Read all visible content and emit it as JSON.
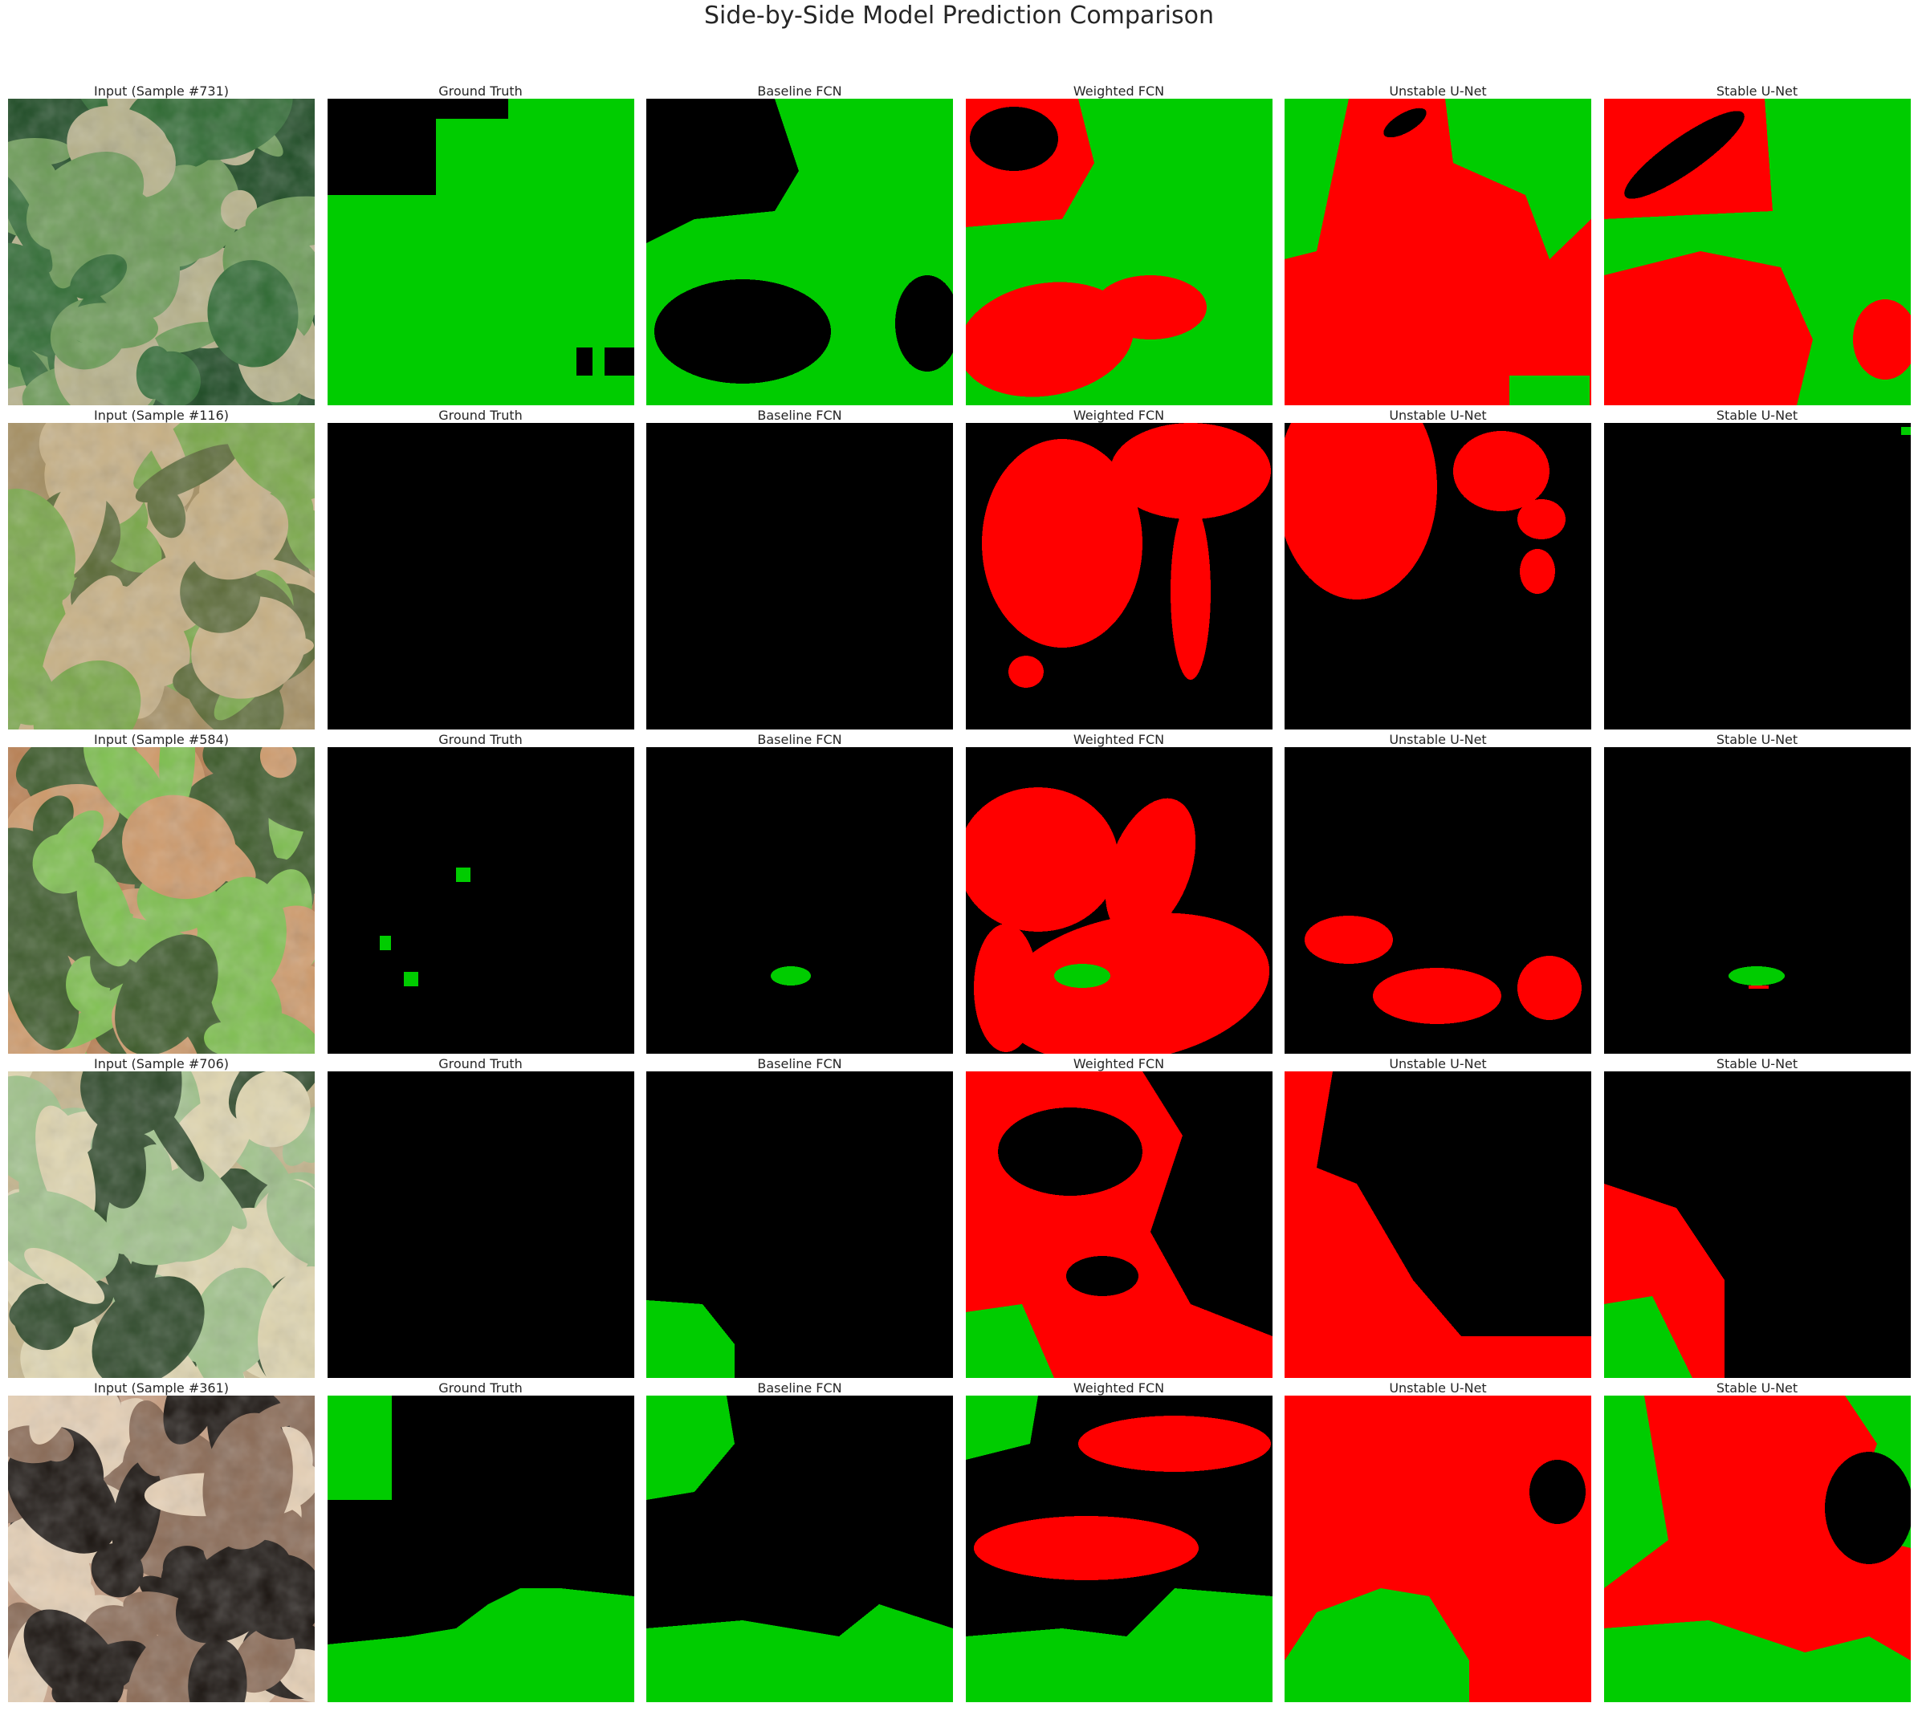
{
  "figure_title": "Side-by-Side Model Prediction Comparison",
  "colors": {
    "background": "#000000",
    "ground_truth_positive": "#00cc00",
    "prediction_correct": "#00cc00",
    "prediction_error": "#ff0000",
    "text": "#262626"
  },
  "column_titles": [
    "Ground Truth",
    "Baseline FCN",
    "Weighted FCN",
    "Unstable U-Net",
    "Stable U-Net"
  ],
  "rows": [
    {
      "input_title": "Input (Sample #731)",
      "input_palette": [
        "#1c4a23",
        "#2f6b33",
        "#6a9a55",
        "#b7b28a"
      ]
    },
    {
      "input_title": "Input (Sample #116)",
      "input_palette": [
        "#a58f62",
        "#7aa84a",
        "#c8b185",
        "#5c6b38"
      ]
    },
    {
      "input_title": "Input (Sample #584)",
      "input_palette": [
        "#b87f52",
        "#3c5a2a",
        "#cf9a6a",
        "#7ec04f"
      ]
    },
    {
      "input_title": "Input (Sample #706)",
      "input_palette": [
        "#c4b48a",
        "#9fc28a",
        "#2f4a2b",
        "#e0d6b0"
      ]
    },
    {
      "input_title": "Input (Sample #361)",
      "input_palette": [
        "#c79f83",
        "#8a6a55",
        "#1a1410",
        "#e6d0b5"
      ]
    }
  ]
}
